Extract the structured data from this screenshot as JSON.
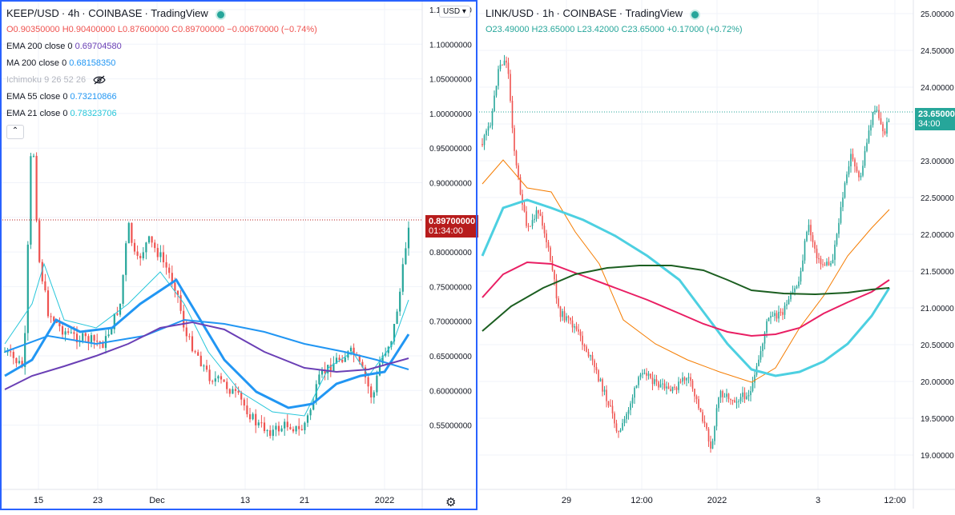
{
  "left_chart": {
    "symbol": "KEEP/USD",
    "interval": "4h",
    "exchange": "COINBASE",
    "source": "TradingView",
    "ohlc": {
      "o": "O0.90350000",
      "h": "H0.90400000",
      "l": "L0.87600000",
      "c": "C0.89700000",
      "chg": "−0.00670000 (−0.74%)"
    },
    "indicators": [
      {
        "label": "EMA 200 close 0",
        "value": "0.69704580",
        "color": "#6a3fb5"
      },
      {
        "label": "MA 200 close 0",
        "value": "0.68158350",
        "color": "#2196f3"
      },
      {
        "label": "Ichimoku 9 26 52 26",
        "value": "",
        "color": "#b2b5be",
        "icon": "eye-off-icon"
      },
      {
        "label": "EMA 55 close 0",
        "value": "0.73210866",
        "color": "#2196f3"
      },
      {
        "label": "EMA 21 close 0",
        "value": "0.78323706",
        "color": "#26c6da"
      }
    ],
    "currency": "USD",
    "price_label": "0.89700000",
    "countdown": "01:34:00",
    "last_color": "#b71c1c",
    "y_ticks": [
      "1.15000000",
      "1.10000000",
      "1.05000000",
      "1.00000000",
      "0.95000000",
      "0.90000000",
      "0.85000000",
      "0.80000000",
      "0.75000000",
      "0.70000000",
      "0.65000000",
      "0.60000000",
      "0.55000000"
    ],
    "y_top_partial": "1.",
    "x_ticks": [
      "15",
      "23",
      "Dec",
      "13",
      "21",
      "2022"
    ]
  },
  "right_chart": {
    "symbol": "LINK/USD",
    "interval": "1h",
    "exchange": "COINBASE",
    "source": "TradingView",
    "ohlc": {
      "o": "O23.49000",
      "h": "H23.65000",
      "l": "L23.42000",
      "c": "C23.65000",
      "chg": "+0.17000 (+0.72%)"
    },
    "price_label": "23.65000",
    "countdown": "34:00",
    "y_ticks": [
      "25.00000",
      "24.50000",
      "24.00000",
      "23.50000",
      "23.00000",
      "22.50000",
      "22.00000",
      "21.50000",
      "21.00000",
      "20.50000",
      "20.00000",
      "19.50000",
      "19.00000"
    ],
    "x_ticks": [
      "29",
      "12:00",
      "2022",
      "3",
      "12:00"
    ]
  },
  "colors": {
    "up": "#26a69a",
    "down": "#ef5350",
    "accent": "#2962ff",
    "grid": "#f0f3fa"
  }
}
